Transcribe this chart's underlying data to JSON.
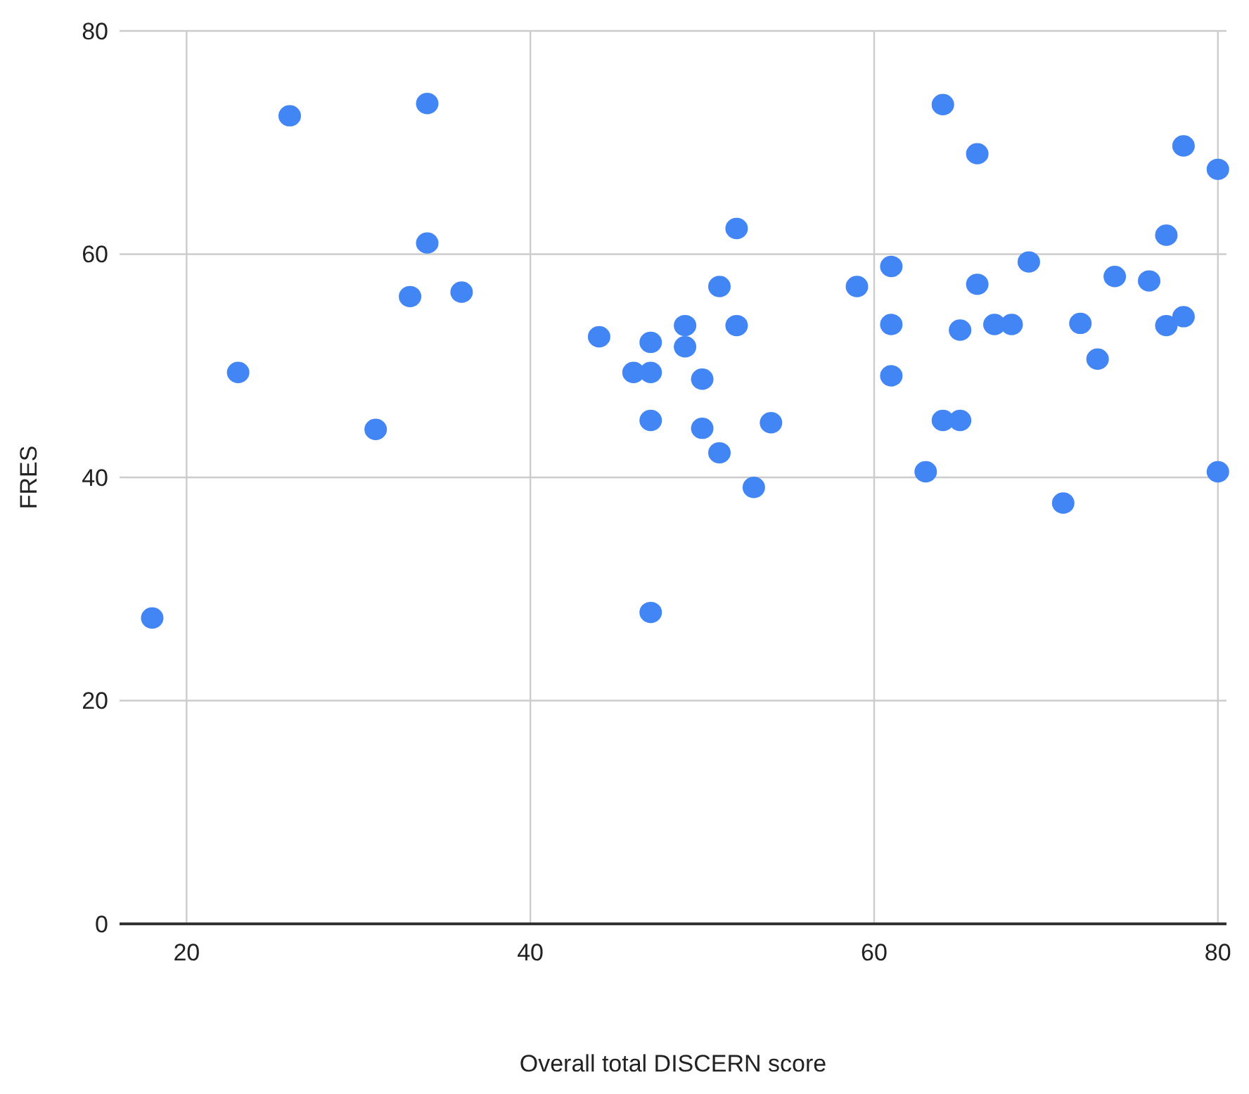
{
  "chart_data": {
    "type": "scatter",
    "xlabel": "Overall total DISCERN score",
    "ylabel": "FRES",
    "xlim": [
      16.1,
      80.5
    ],
    "xticks": [
      20,
      40,
      60,
      80
    ],
    "ylim": [
      0,
      80
    ],
    "yticks": [
      0,
      20,
      40,
      60,
      80
    ],
    "grid": true,
    "marker": "circle",
    "series": [
      {
        "color": "#4285f4",
        "x": [
          18,
          23,
          26,
          31,
          33,
          34,
          34,
          36,
          44,
          46,
          47,
          47,
          47,
          47,
          49,
          49,
          50,
          50,
          51,
          51,
          52,
          52,
          53,
          54,
          59,
          61,
          61,
          61,
          63,
          64,
          64,
          65,
          65,
          66,
          66,
          67,
          68,
          69,
          71,
          72,
          73,
          74,
          76,
          77,
          77,
          78,
          78,
          80,
          80
        ],
        "values": [
          27.4,
          49.4,
          72.4,
          44.3,
          56.2,
          73.5,
          61,
          56.6,
          52.6,
          49.4,
          52.1,
          49.4,
          45.1,
          27.9,
          53.6,
          51.7,
          48.8,
          44.4,
          57.1,
          42.2,
          62.3,
          53.6,
          39.1,
          44.9,
          57.1,
          58.9,
          53.7,
          49.1,
          40.5,
          73.4,
          45.1,
          45.1,
          53.2,
          69,
          57.3,
          53.7,
          53.7,
          59.3,
          37.7,
          53.8,
          50.6,
          58,
          57.6,
          61.7,
          53.6,
          69.7,
          54.4,
          67.6,
          40.5
        ]
      }
    ]
  }
}
